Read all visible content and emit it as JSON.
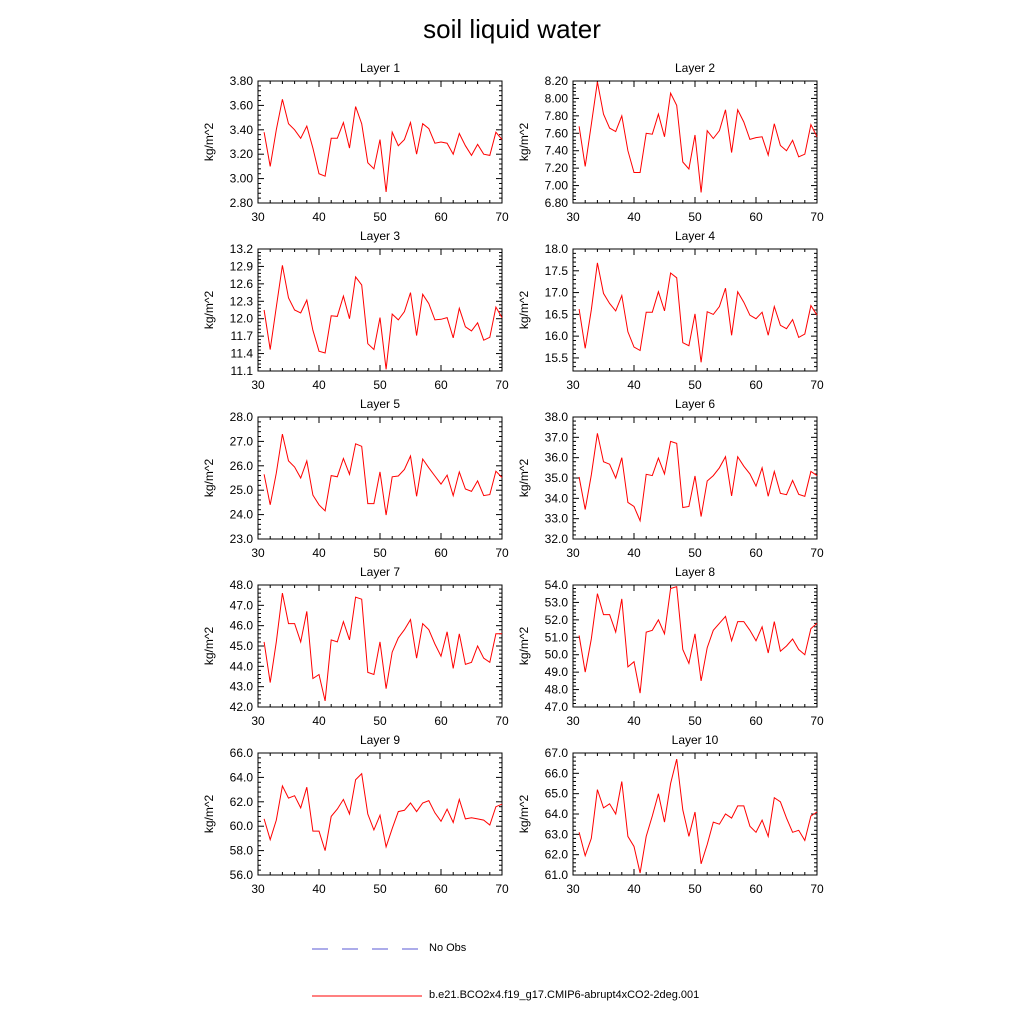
{
  "title": "soil liquid water",
  "legend": [
    {
      "label": "No Obs",
      "color": "#5a5ad6",
      "style": "dashed"
    },
    {
      "label": "b.e21.BCO2x4.f19_g17.CMIP6-abrupt4xCO2-2deg.001",
      "color": "#ff0000",
      "style": "solid"
    }
  ],
  "chart_data": [
    {
      "type": "line",
      "title": "Layer 1",
      "xlabel": "",
      "ylabel": "kg/m^2",
      "xlim": [
        30,
        70
      ],
      "ylim": [
        2.8,
        3.8
      ],
      "xticks": [
        "30",
        "40",
        "50",
        "60",
        "70"
      ],
      "yticks": [
        "2.80",
        "3.00",
        "3.20",
        "3.40",
        "3.60",
        "3.80"
      ],
      "series": [
        {
          "x": [
            31,
            32,
            33,
            34,
            35,
            36,
            37,
            38,
            39,
            40,
            41,
            42,
            43,
            44,
            45,
            46,
            47,
            48,
            49,
            50,
            51,
            52,
            53,
            54,
            55,
            56,
            57,
            58,
            59,
            60,
            61,
            62,
            63,
            64,
            65,
            66,
            67,
            68,
            69,
            70
          ],
          "values": [
            3.38,
            3.1,
            3.4,
            3.65,
            3.45,
            3.4,
            3.33,
            3.43,
            3.25,
            3.04,
            3.02,
            3.33,
            3.33,
            3.46,
            3.25,
            3.59,
            3.45,
            3.13,
            3.08,
            3.32,
            2.89,
            3.38,
            3.27,
            3.32,
            3.46,
            3.2,
            3.45,
            3.41,
            3.29,
            3.3,
            3.29,
            3.2,
            3.37,
            3.27,
            3.19,
            3.28,
            3.2,
            3.19,
            3.38,
            3.32
          ]
        }
      ]
    },
    {
      "type": "line",
      "title": "Layer 2",
      "xlabel": "",
      "ylabel": "kg/m^2",
      "xlim": [
        30,
        70
      ],
      "ylim": [
        6.8,
        8.2
      ],
      "xticks": [
        "30",
        "40",
        "50",
        "60",
        "70"
      ],
      "yticks": [
        "6.80",
        "7.00",
        "7.20",
        "7.40",
        "7.60",
        "7.80",
        "8.00",
        "8.20"
      ],
      "series": [
        {
          "x": [
            31,
            32,
            33,
            34,
            35,
            36,
            37,
            38,
            39,
            40,
            41,
            42,
            43,
            44,
            45,
            46,
            47,
            48,
            49,
            50,
            51,
            52,
            53,
            54,
            55,
            56,
            57,
            58,
            59,
            60,
            61,
            62,
            63,
            64,
            65,
            66,
            67,
            68,
            69,
            70
          ],
          "values": [
            7.68,
            7.22,
            7.7,
            8.19,
            7.82,
            7.66,
            7.62,
            7.8,
            7.4,
            7.15,
            7.15,
            7.6,
            7.59,
            7.82,
            7.56,
            8.06,
            7.92,
            7.27,
            7.19,
            7.58,
            6.92,
            7.63,
            7.54,
            7.63,
            7.87,
            7.38,
            7.87,
            7.73,
            7.53,
            7.55,
            7.56,
            7.35,
            7.71,
            7.46,
            7.4,
            7.52,
            7.33,
            7.36,
            7.7,
            7.56
          ]
        }
      ]
    },
    {
      "type": "line",
      "title": "Layer 3",
      "xlabel": "",
      "ylabel": "kg/m^2",
      "xlim": [
        30,
        70
      ],
      "ylim": [
        11.1,
        13.2
      ],
      "xticks": [
        "30",
        "40",
        "50",
        "60",
        "70"
      ],
      "yticks": [
        "11.1",
        "11.4",
        "11.7",
        "12.0",
        "12.3",
        "12.6",
        "12.9",
        "13.2"
      ],
      "series": [
        {
          "x": [
            31,
            32,
            33,
            34,
            35,
            36,
            37,
            38,
            39,
            40,
            41,
            42,
            43,
            44,
            45,
            46,
            47,
            48,
            49,
            50,
            51,
            52,
            53,
            54,
            55,
            56,
            57,
            58,
            59,
            60,
            61,
            62,
            63,
            64,
            65,
            66,
            67,
            68,
            69,
            70
          ],
          "values": [
            12.15,
            11.47,
            12.2,
            12.92,
            12.36,
            12.15,
            12.1,
            12.32,
            11.8,
            11.44,
            11.41,
            12.05,
            12.04,
            12.39,
            12.0,
            12.72,
            12.58,
            11.57,
            11.47,
            12.02,
            11.13,
            12.08,
            11.98,
            12.12,
            12.45,
            11.71,
            12.42,
            12.26,
            11.98,
            11.99,
            12.02,
            11.67,
            12.18,
            11.86,
            11.79,
            11.93,
            11.63,
            11.68,
            12.2,
            12.02
          ]
        }
      ]
    },
    {
      "type": "line",
      "title": "Layer 4",
      "xlabel": "",
      "ylabel": "kg/m^2",
      "xlim": [
        30,
        70
      ],
      "ylim": [
        15.2,
        18.0
      ],
      "xticks": [
        "30",
        "40",
        "50",
        "60",
        "70"
      ],
      "yticks": [
        "15.5",
        "16.0",
        "16.5",
        "17.0",
        "17.5",
        "18.0"
      ],
      "series": [
        {
          "x": [
            31,
            32,
            33,
            34,
            35,
            36,
            37,
            38,
            39,
            40,
            41,
            42,
            43,
            44,
            45,
            46,
            47,
            48,
            49,
            50,
            51,
            52,
            53,
            54,
            55,
            56,
            57,
            58,
            59,
            60,
            61,
            62,
            63,
            64,
            65,
            66,
            67,
            68,
            69,
            70
          ],
          "values": [
            16.62,
            15.72,
            16.6,
            17.68,
            16.98,
            16.75,
            16.58,
            16.93,
            16.1,
            15.75,
            15.67,
            16.55,
            16.55,
            17.02,
            16.58,
            17.45,
            17.34,
            15.85,
            15.78,
            16.51,
            15.4,
            16.56,
            16.5,
            16.68,
            17.1,
            16.02,
            17.02,
            16.78,
            16.48,
            16.4,
            16.55,
            16.02,
            16.68,
            16.25,
            16.17,
            16.38,
            15.97,
            16.05,
            16.7,
            16.48
          ]
        }
      ]
    },
    {
      "type": "line",
      "title": "Layer 5",
      "xlabel": "",
      "ylabel": "kg/m^2",
      "xlim": [
        30,
        70
      ],
      "ylim": [
        23.0,
        28.0
      ],
      "xticks": [
        "30",
        "40",
        "50",
        "60",
        "70"
      ],
      "yticks": [
        "23.0",
        "24.0",
        "25.0",
        "26.0",
        "27.0",
        "28.0"
      ],
      "series": [
        {
          "x": [
            31,
            32,
            33,
            34,
            35,
            36,
            37,
            38,
            39,
            40,
            41,
            42,
            43,
            44,
            45,
            46,
            47,
            48,
            49,
            50,
            51,
            52,
            53,
            54,
            55,
            56,
            57,
            58,
            59,
            60,
            61,
            62,
            63,
            64,
            65,
            66,
            67,
            68,
            69,
            70
          ],
          "values": [
            25.65,
            24.4,
            25.7,
            27.3,
            26.2,
            25.95,
            25.5,
            26.2,
            24.8,
            24.4,
            24.15,
            25.6,
            25.55,
            26.3,
            25.65,
            26.9,
            26.8,
            24.45,
            24.45,
            25.75,
            23.98,
            25.55,
            25.58,
            25.85,
            26.4,
            24.75,
            26.28,
            25.92,
            25.58,
            25.25,
            25.62,
            24.78,
            25.75,
            25.05,
            24.95,
            25.38,
            24.78,
            24.82,
            25.78,
            25.52
          ]
        }
      ]
    },
    {
      "type": "line",
      "title": "Layer 6",
      "xlabel": "",
      "ylabel": "kg/m^2",
      "xlim": [
        30,
        70
      ],
      "ylim": [
        32.0,
        38.0
      ],
      "xticks": [
        "30",
        "40",
        "50",
        "60",
        "70"
      ],
      "yticks": [
        "32.0",
        "33.0",
        "34.0",
        "35.0",
        "36.0",
        "37.0",
        "38.0"
      ],
      "series": [
        {
          "x": [
            31,
            32,
            33,
            34,
            35,
            36,
            37,
            38,
            39,
            40,
            41,
            42,
            43,
            44,
            45,
            46,
            47,
            48,
            49,
            50,
            51,
            52,
            53,
            54,
            55,
            56,
            57,
            58,
            59,
            60,
            61,
            62,
            63,
            64,
            65,
            66,
            67,
            68,
            69,
            70
          ],
          "values": [
            35.05,
            33.45,
            35.15,
            37.2,
            35.8,
            35.68,
            35.0,
            36.0,
            33.8,
            33.6,
            32.9,
            35.18,
            35.12,
            35.98,
            35.2,
            36.8,
            36.7,
            33.55,
            33.6,
            35.1,
            33.1,
            34.85,
            35.12,
            35.5,
            36.05,
            34.12,
            36.05,
            35.58,
            35.2,
            34.6,
            35.5,
            34.1,
            35.32,
            34.25,
            34.18,
            34.88,
            34.2,
            34.1,
            35.32,
            35.12
          ]
        }
      ]
    },
    {
      "type": "line",
      "title": "Layer 7",
      "xlabel": "",
      "ylabel": "kg/m^2",
      "xlim": [
        30,
        70
      ],
      "ylim": [
        42.0,
        48.0
      ],
      "xticks": [
        "30",
        "40",
        "50",
        "60",
        "70"
      ],
      "yticks": [
        "42.0",
        "43.0",
        "44.0",
        "45.0",
        "46.0",
        "47.0",
        "48.0"
      ],
      "series": [
        {
          "x": [
            31,
            32,
            33,
            34,
            35,
            36,
            37,
            38,
            39,
            40,
            41,
            42,
            43,
            44,
            45,
            46,
            47,
            48,
            49,
            50,
            51,
            52,
            53,
            54,
            55,
            56,
            57,
            58,
            59,
            60,
            61,
            62,
            63,
            64,
            65,
            66,
            67,
            68,
            69,
            70
          ],
          "values": [
            45.2,
            43.2,
            45.2,
            47.6,
            46.1,
            46.1,
            45.2,
            46.7,
            43.4,
            43.6,
            42.3,
            45.3,
            45.2,
            46.2,
            45.3,
            47.4,
            47.3,
            43.7,
            43.6,
            45.2,
            42.9,
            44.7,
            45.4,
            45.8,
            46.3,
            44.4,
            46.1,
            45.8,
            45.1,
            44.5,
            45.7,
            43.9,
            45.6,
            44.1,
            44.2,
            45.0,
            44.4,
            44.2,
            45.6,
            45.6
          ]
        }
      ]
    },
    {
      "type": "line",
      "title": "Layer 8",
      "xlabel": "",
      "ylabel": "kg/m^2",
      "xlim": [
        30,
        70
      ],
      "ylim": [
        47.0,
        54.0
      ],
      "xticks": [
        "30",
        "40",
        "50",
        "60",
        "70"
      ],
      "yticks": [
        "47.0",
        "48.0",
        "49.0",
        "50.0",
        "51.0",
        "52.0",
        "53.0",
        "54.0"
      ],
      "series": [
        {
          "x": [
            31,
            32,
            33,
            34,
            35,
            36,
            37,
            38,
            39,
            40,
            41,
            42,
            43,
            44,
            45,
            46,
            47,
            48,
            49,
            50,
            51,
            52,
            53,
            54,
            55,
            56,
            57,
            58,
            59,
            60,
            61,
            62,
            63,
            64,
            65,
            66,
            67,
            68,
            69,
            70
          ],
          "values": [
            51.1,
            49.0,
            50.9,
            53.5,
            52.3,
            52.3,
            51.3,
            53.2,
            49.3,
            49.6,
            47.8,
            51.3,
            51.4,
            52.0,
            51.2,
            53.8,
            53.9,
            50.3,
            49.5,
            51.2,
            48.5,
            50.4,
            51.4,
            51.8,
            52.2,
            50.8,
            51.9,
            51.9,
            51.4,
            50.8,
            51.6,
            50.1,
            51.9,
            50.2,
            50.5,
            50.9,
            50.3,
            50.0,
            51.5,
            51.8
          ]
        }
      ]
    },
    {
      "type": "line",
      "title": "Layer 9",
      "xlabel": "",
      "ylabel": "kg/m^2",
      "xlim": [
        30,
        70
      ],
      "ylim": [
        56.0,
        66.0
      ],
      "xticks": [
        "30",
        "40",
        "50",
        "60",
        "70"
      ],
      "yticks": [
        "56.0",
        "58.0",
        "60.0",
        "62.0",
        "64.0",
        "66.0"
      ],
      "series": [
        {
          "x": [
            31,
            32,
            33,
            34,
            35,
            36,
            37,
            38,
            39,
            40,
            41,
            42,
            43,
            44,
            45,
            46,
            47,
            48,
            49,
            50,
            51,
            52,
            53,
            54,
            55,
            56,
            57,
            58,
            59,
            60,
            61,
            62,
            63,
            64,
            65,
            66,
            67,
            68,
            69,
            70
          ],
          "values": [
            60.6,
            58.9,
            60.5,
            63.3,
            62.3,
            62.5,
            61.5,
            63.2,
            59.6,
            59.6,
            58.0,
            60.8,
            61.4,
            62.2,
            61.0,
            63.8,
            64.3,
            61.0,
            59.7,
            60.9,
            58.3,
            59.8,
            61.2,
            61.3,
            61.9,
            61.2,
            61.9,
            62.1,
            61.1,
            60.4,
            61.4,
            60.3,
            62.2,
            60.6,
            60.7,
            60.6,
            60.5,
            60.1,
            61.6,
            61.8
          ]
        }
      ]
    },
    {
      "type": "line",
      "title": "Layer 10",
      "xlabel": "",
      "ylabel": "kg/m^2",
      "xlim": [
        30,
        70
      ],
      "ylim": [
        61.0,
        67.0
      ],
      "xticks": [
        "30",
        "40",
        "50",
        "60",
        "70"
      ],
      "yticks": [
        "61.0",
        "62.0",
        "63.0",
        "64.0",
        "65.0",
        "66.0",
        "67.0"
      ],
      "series": [
        {
          "x": [
            31,
            32,
            33,
            34,
            35,
            36,
            37,
            38,
            39,
            40,
            41,
            42,
            43,
            44,
            45,
            46,
            47,
            48,
            49,
            50,
            51,
            52,
            53,
            54,
            55,
            56,
            57,
            58,
            59,
            60,
            61,
            62,
            63,
            64,
            65,
            66,
            67,
            68,
            69,
            70
          ],
          "values": [
            63.1,
            61.95,
            62.8,
            65.2,
            64.3,
            64.5,
            64.0,
            65.6,
            62.9,
            62.4,
            61.1,
            62.9,
            63.9,
            65.0,
            63.6,
            65.5,
            66.7,
            64.2,
            62.9,
            64.1,
            61.55,
            62.5,
            63.6,
            63.5,
            64.0,
            63.8,
            64.4,
            64.4,
            63.4,
            63.1,
            63.7,
            62.9,
            64.8,
            64.6,
            63.8,
            63.1,
            63.2,
            62.7,
            63.9,
            64.1
          ]
        }
      ]
    }
  ]
}
